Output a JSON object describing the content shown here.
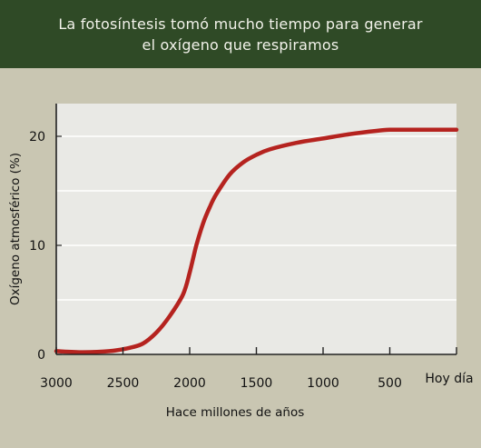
{
  "header": {
    "title_line1": "La fotosíntesis tomó mucho tiempo para generar",
    "title_line2": "el oxígeno que respiramos",
    "background_color": "#2f4a26",
    "text_color": "#f2f2ea"
  },
  "chart_data": {
    "type": "line",
    "title": "La fotosíntesis tomó mucho tiempo para generar el oxígeno que respiramos",
    "xlabel": "Hace millones de años",
    "ylabel": "Oxígeno atmosférico (%)",
    "x_reversed": true,
    "xlim": [
      3000,
      0
    ],
    "ylim": [
      0,
      23
    ],
    "x_ticks": [
      {
        "value": 3000,
        "label": "3000"
      },
      {
        "value": 2500,
        "label": "2500"
      },
      {
        "value": 2000,
        "label": "2000"
      },
      {
        "value": 1500,
        "label": "1500"
      },
      {
        "value": 1000,
        "label": "1000"
      },
      {
        "value": 500,
        "label": "500"
      },
      {
        "value": 0,
        "label": "Hoy día"
      }
    ],
    "y_ticks": [
      {
        "value": 0,
        "label": "0"
      },
      {
        "value": 10,
        "label": "10"
      },
      {
        "value": 20,
        "label": "20"
      }
    ],
    "y_gridlines": [
      5,
      10,
      15,
      20
    ],
    "grid": true,
    "line_color": "#b5231f",
    "plot_background": "#e9e9e5",
    "series": [
      {
        "x": [
          3000,
          2800,
          2600,
          2450,
          2350,
          2250,
          2150,
          2050,
          2000,
          1950,
          1900,
          1850,
          1800,
          1700,
          1600,
          1500,
          1400,
          1200,
          1000,
          800,
          600,
          500,
          400,
          200,
          0
        ],
        "y": [
          0.3,
          0.2,
          0.3,
          0.6,
          1.0,
          2.0,
          3.5,
          5.5,
          7.5,
          10.0,
          12.0,
          13.5,
          14.7,
          16.5,
          17.6,
          18.3,
          18.8,
          19.4,
          19.8,
          20.2,
          20.5,
          20.6,
          20.6,
          20.6,
          20.6
        ]
      }
    ]
  }
}
